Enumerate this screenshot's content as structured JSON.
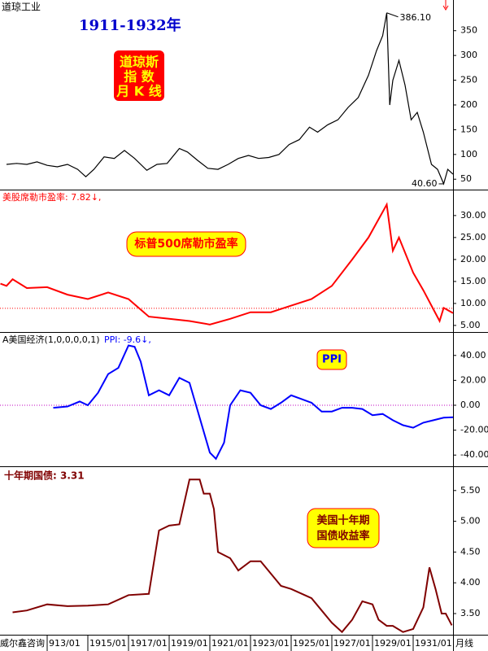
{
  "x_axis": {
    "xlim": [
      1910.68,
      1932.96
    ],
    "xticks": [
      {
        "value": 1913,
        "label": "913/01"
      },
      {
        "value": 1915,
        "label": "1915/01"
      },
      {
        "value": 1917,
        "label": "1917/01"
      },
      {
        "value": 1919,
        "label": "1919/01"
      },
      {
        "value": 1921,
        "label": "1921/01"
      },
      {
        "value": 1923,
        "label": "1923/01"
      },
      {
        "value": 1925,
        "label": "1925/01"
      },
      {
        "value": 1927,
        "label": "1927/01"
      },
      {
        "value": 1929,
        "label": "1929/01"
      },
      {
        "value": 1931,
        "label": "1931/01"
      }
    ]
  },
  "footer": {
    "left": "威尔鑫咨询",
    "right": "月线"
  },
  "chart_data": [
    {
      "type": "line",
      "title": "道琼工业",
      "subtitle": "1911-1932年",
      "annotations": [
        "道琼斯",
        "指 数",
        "月 K 线"
      ],
      "peak": {
        "x": 1929.7,
        "value": 386.1,
        "label": "386.10"
      },
      "trough": {
        "x": 1932.5,
        "value": 40.6,
        "label": "40.60"
      },
      "x": [
        1911.0,
        1911.5,
        1912.0,
        1912.5,
        1913.0,
        1913.5,
        1914.0,
        1914.5,
        1914.9,
        1915.3,
        1915.8,
        1916.3,
        1916.8,
        1917.3,
        1917.9,
        1918.4,
        1918.9,
        1919.5,
        1919.9,
        1920.4,
        1920.9,
        1921.4,
        1921.9,
        1922.4,
        1922.9,
        1923.4,
        1923.9,
        1924.4,
        1924.9,
        1925.4,
        1925.9,
        1926.3,
        1926.8,
        1927.3,
        1927.8,
        1928.3,
        1928.8,
        1929.2,
        1929.5,
        1929.7,
        1929.85,
        1930.0,
        1930.3,
        1930.6,
        1930.9,
        1931.2,
        1931.5,
        1931.9,
        1932.2,
        1932.5,
        1932.7,
        1932.96
      ],
      "series": [
        {
          "color": "#000000",
          "values": [
            80,
            82,
            80,
            85,
            78,
            75,
            80,
            70,
            55,
            70,
            95,
            92,
            108,
            92,
            68,
            80,
            82,
            112,
            105,
            88,
            72,
            70,
            80,
            92,
            98,
            92,
            94,
            100,
            120,
            130,
            155,
            145,
            160,
            170,
            195,
            215,
            260,
            310,
            340,
            386.1,
            200,
            250,
            290,
            240,
            170,
            185,
            145,
            80,
            70,
            40.6,
            70,
            60
          ]
        }
      ],
      "ylim": [
        29,
        412
      ],
      "yticks": [
        50,
        100,
        150,
        200,
        250,
        300,
        350
      ]
    },
    {
      "type": "line",
      "title": "美股席勒市盈率: 7.82↓,",
      "annotations": [
        "标普500席勒市盈率"
      ],
      "ref_line": 8.9,
      "x": [
        1910.7,
        1911.0,
        1911.3,
        1912.0,
        1913.0,
        1914.0,
        1915.0,
        1916.0,
        1917.0,
        1918.0,
        1919.0,
        1920.0,
        1921.0,
        1922.0,
        1923.0,
        1924.0,
        1925.0,
        1926.0,
        1927.0,
        1928.0,
        1928.8,
        1929.7,
        1930.0,
        1930.3,
        1931.0,
        1931.5,
        1932.3,
        1932.5,
        1932.96
      ],
      "series": [
        {
          "color": "#ff0000",
          "values": [
            14.5,
            14,
            15.5,
            13.5,
            13.7,
            12,
            11,
            12.5,
            11,
            7,
            6.5,
            6,
            5.2,
            6.5,
            8,
            8,
            9.5,
            11,
            14,
            20,
            25,
            32.5,
            22,
            25,
            17,
            13,
            6,
            9,
            7.82
          ]
        }
      ],
      "ylim": [
        3.5,
        35.9
      ],
      "yticks": [
        {
          "value": 5,
          "label": "5.00"
        },
        {
          "value": 10,
          "label": "10.00"
        },
        {
          "value": 15,
          "label": "15.00"
        },
        {
          "value": 20,
          "label": "20.00"
        },
        {
          "value": 25,
          "label": "25.00"
        },
        {
          "value": 30,
          "label": "30.00"
        }
      ]
    },
    {
      "type": "line",
      "title": "A美国经济(1,0,0,0,0,1)",
      "indicator": "PPI: -9.6↓,",
      "annotations": [
        "PPI"
      ],
      "ref_line": 0,
      "x": [
        1913.3,
        1914.0,
        1914.6,
        1915.0,
        1915.5,
        1916.0,
        1916.5,
        1917.0,
        1917.3,
        1917.6,
        1918.0,
        1918.5,
        1919.0,
        1919.5,
        1920.0,
        1920.5,
        1921.0,
        1921.3,
        1921.7,
        1922.0,
        1922.5,
        1923.0,
        1923.5,
        1924.0,
        1924.5,
        1925.0,
        1925.5,
        1926.0,
        1926.5,
        1927.0,
        1927.5,
        1928.0,
        1928.5,
        1929.0,
        1929.5,
        1930.0,
        1930.5,
        1931.0,
        1931.5,
        1932.0,
        1932.5,
        1932.96
      ],
      "series": [
        {
          "color": "#0000ff",
          "values": [
            -2,
            -1,
            3,
            0,
            10,
            25,
            30,
            48,
            47,
            35,
            8,
            12,
            8,
            22,
            18,
            -10,
            -38,
            -43,
            -30,
            0,
            12,
            10,
            0,
            -3,
            2,
            8,
            5,
            2,
            -5,
            -5,
            -2,
            -2,
            -3,
            -8,
            -7,
            -12,
            -16,
            -18,
            -14,
            -12,
            -10,
            -9.6
          ]
        }
      ],
      "ylim": [
        -49,
        58.8
      ],
      "yticks": [
        {
          "value": -40,
          "label": "-40.00"
        },
        {
          "value": -20,
          "label": "-20.00"
        },
        {
          "value": 0,
          "label": "0.00"
        },
        {
          "value": 20,
          "label": "20.00"
        },
        {
          "value": 40,
          "label": "40.00"
        }
      ]
    },
    {
      "type": "line",
      "title": "十年期国债: 3.31",
      "annotations": [
        "美国十年期",
        "国债收益率"
      ],
      "x": [
        1911.3,
        1912.0,
        1913.0,
        1914.0,
        1915.0,
        1916.0,
        1917.0,
        1918.0,
        1918.5,
        1919.0,
        1919.5,
        1920.0,
        1920.5,
        1920.7,
        1921.0,
        1921.2,
        1921.4,
        1922.0,
        1922.4,
        1923.0,
        1923.5,
        1924.0,
        1924.5,
        1925.0,
        1926.0,
        1926.5,
        1927.0,
        1927.5,
        1928.0,
        1928.5,
        1929.0,
        1929.3,
        1929.7,
        1930.0,
        1930.5,
        1931.0,
        1931.5,
        1931.8,
        1932.1,
        1932.4,
        1932.6,
        1932.9
      ],
      "series": [
        {
          "color": "#800000",
          "values": [
            3.52,
            3.55,
            3.65,
            3.62,
            3.63,
            3.65,
            3.8,
            3.82,
            4.85,
            4.93,
            4.95,
            5.68,
            5.68,
            5.45,
            5.45,
            5.2,
            4.5,
            4.4,
            4.2,
            4.35,
            4.35,
            4.15,
            3.95,
            3.9,
            3.75,
            3.55,
            3.35,
            3.2,
            3.4,
            3.7,
            3.65,
            3.4,
            3.3,
            3.3,
            3.2,
            3.25,
            3.6,
            4.25,
            3.9,
            3.5,
            3.5,
            3.31
          ]
        }
      ],
      "ylim": [
        3.156,
        5.894
      ],
      "yticks": [
        {
          "value": 3.5,
          "label": "3.50"
        },
        {
          "value": 4,
          "label": "4.00"
        },
        {
          "value": 4.5,
          "label": "4.50"
        },
        {
          "value": 5,
          "label": "5.00"
        },
        {
          "value": 5.5,
          "label": "5.50"
        }
      ]
    }
  ]
}
